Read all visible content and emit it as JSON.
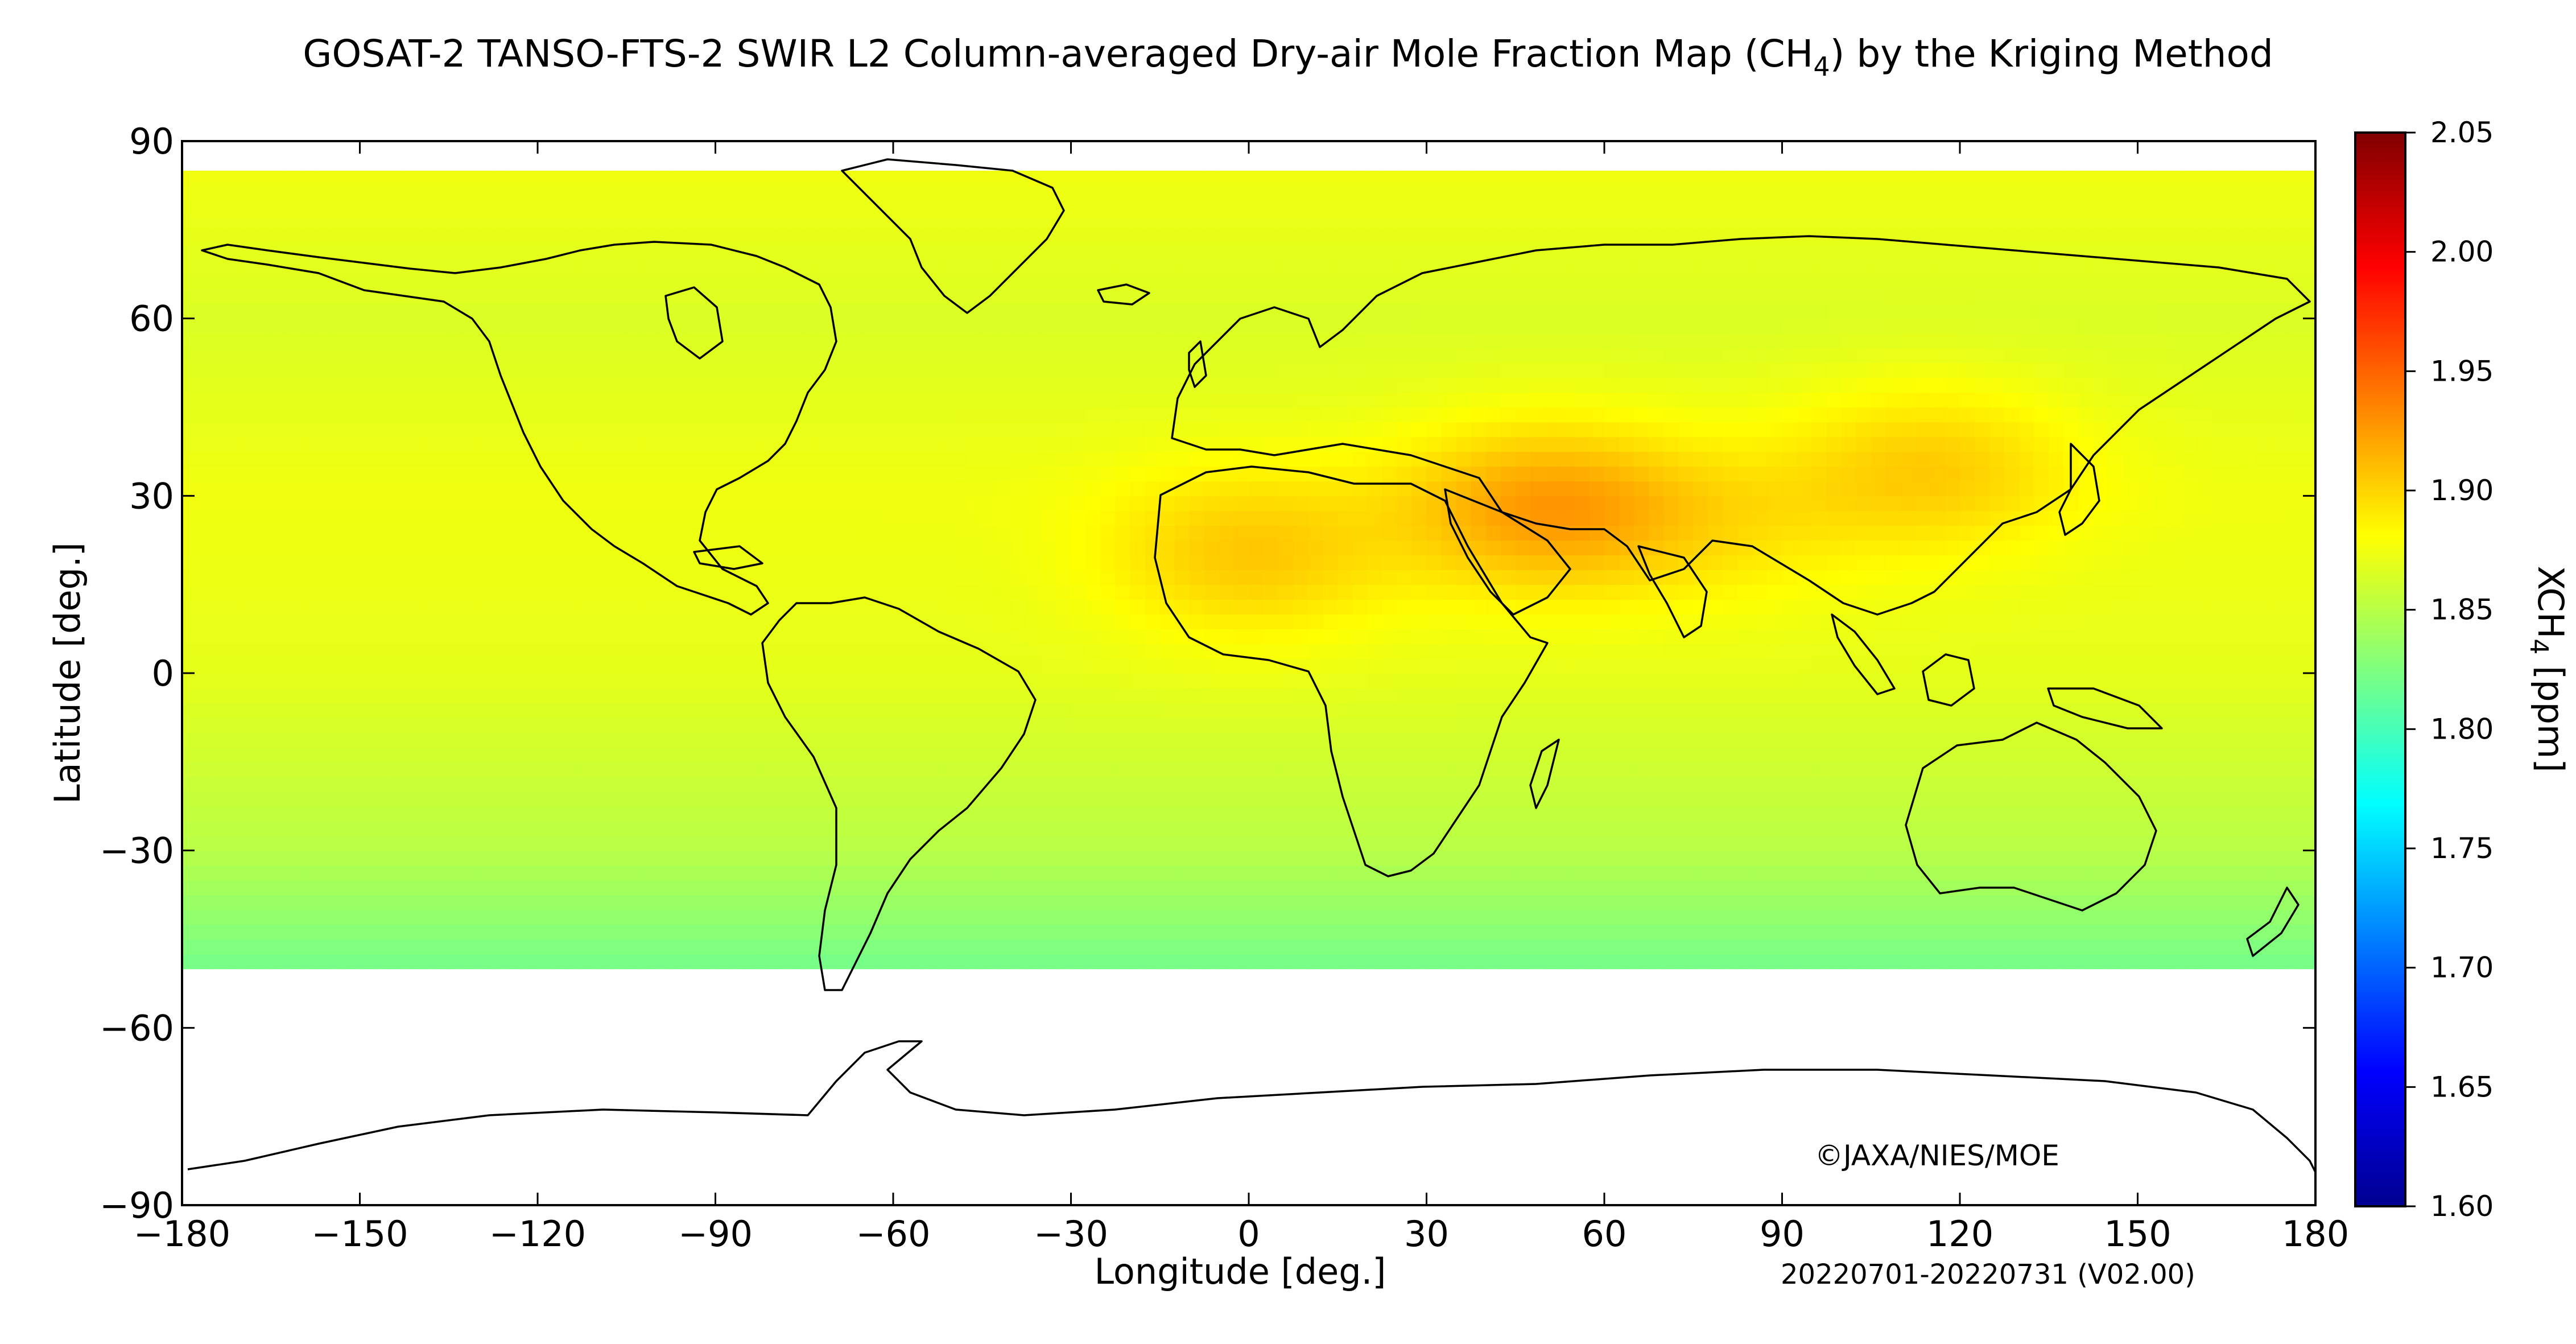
{
  "title": "GOSAT-2 TANSO-FTS-2 SWIR L2 Column-averaged Dry-air Mole Fraction Map (CH",
  "title_subscript": "4",
  "title_suffix": ") by the Kriging Method",
  "credit": "©JAXA/NIES/MOE",
  "period": "20220701-20220731 (V02.00)",
  "chart_data": {
    "type": "heatmap",
    "xlabel": "Longitude [deg.]",
    "ylabel": "Latitude [deg.]",
    "xlim": [
      -180,
      180
    ],
    "ylim": [
      -90,
      90
    ],
    "xticks": [
      -180,
      -150,
      -120,
      -90,
      -60,
      -30,
      0,
      30,
      60,
      90,
      120,
      150,
      180
    ],
    "yticks": [
      -90,
      -60,
      -30,
      0,
      30,
      60,
      90
    ],
    "xtick_labels": [
      "−180",
      "−150",
      "−120",
      "−90",
      "−60",
      "−30",
      "0",
      "30",
      "60",
      "90",
      "120",
      "150",
      "180"
    ],
    "ytick_labels": [
      "−90",
      "−60",
      "−30",
      "0",
      "30",
      "60",
      "90"
    ],
    "colorbar": {
      "label_main": "XCH",
      "label_sub": "4",
      "label_unit": " [ppm]",
      "range": [
        1.6,
        2.05
      ],
      "ticks": [
        1.6,
        1.65,
        1.7,
        1.75,
        1.8,
        1.85,
        1.9,
        1.95,
        2.0,
        2.05
      ],
      "tick_labels": [
        "1.60",
        "1.65",
        "1.70",
        "1.75",
        "1.80",
        "1.85",
        "1.90",
        "1.95",
        "2.00",
        "2.05"
      ],
      "colormap": "jet"
    },
    "field": {
      "grid_resolution_deg": 2.5,
      "valid_lat_range": [
        -50,
        85
      ],
      "base_by_latitude": [
        [
          -50,
          1.82
        ],
        [
          -30,
          1.85
        ],
        [
          0,
          1.87
        ],
        [
          30,
          1.875
        ],
        [
          60,
          1.865
        ],
        [
          85,
          1.875
        ]
      ],
      "enhancements": [
        {
          "lon": 50,
          "lat": 28,
          "amplitude": 0.05
        },
        {
          "lon": 0,
          "lat": 20,
          "amplitude": 0.032
        },
        {
          "lon": 115,
          "lat": 35,
          "amplitude": 0.03
        },
        {
          "lon": 80,
          "lat": 25,
          "amplitude": 0.015
        }
      ]
    }
  },
  "colors": {
    "land_outline": "#000000",
    "missing_data": "#ffffff",
    "frame": "#000000"
  }
}
